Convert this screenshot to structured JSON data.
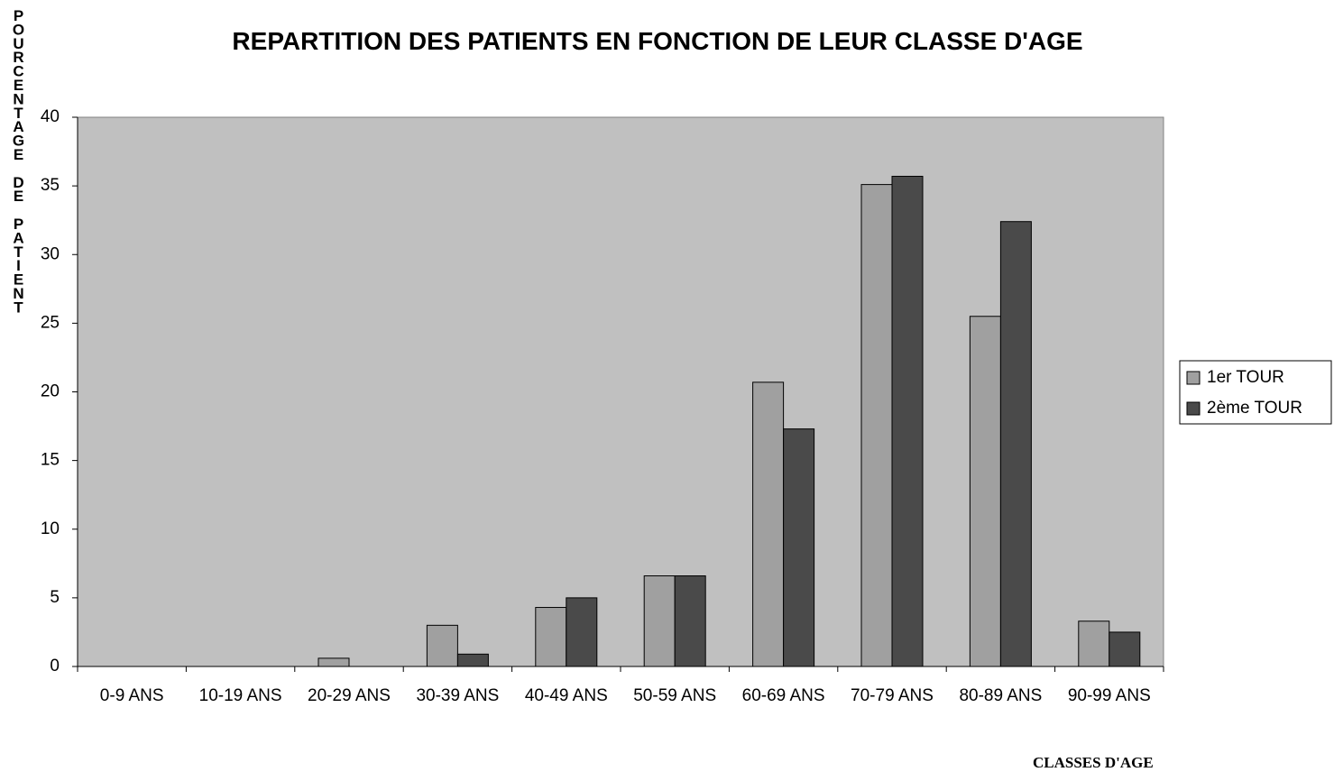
{
  "chart_data": {
    "type": "bar",
    "title": "REPARTITION DES PATIENTS EN FONCTION DE LEUR CLASSE D'AGE",
    "y_label": "POURCENTAGE DE PATIENT",
    "x_label": "CLASSES D'AGE",
    "categories": [
      "0-9 ANS",
      "10-19 ANS",
      "20-29 ANS",
      "30-39 ANS",
      "40-49 ANS",
      "50-59 ANS",
      "60-69 ANS",
      "70-79 ANS",
      "80-89 ANS",
      "90-99 ANS"
    ],
    "series": [
      {
        "name": "1er TOUR",
        "color": "#a0a0a0",
        "values": [
          0,
          0,
          0.6,
          3.0,
          4.3,
          6.6,
          20.7,
          35.1,
          25.5,
          3.3
        ]
      },
      {
        "name": "2ème TOUR",
        "color": "#4a4a4a",
        "values": [
          0,
          0,
          0,
          0.9,
          5.0,
          6.6,
          17.3,
          35.7,
          32.4,
          2.5
        ]
      }
    ],
    "ylim": [
      0,
      40
    ],
    "yticks": [
      0,
      5,
      10,
      15,
      20,
      25,
      30,
      35,
      40
    ],
    "grid": false,
    "legend": "right"
  }
}
